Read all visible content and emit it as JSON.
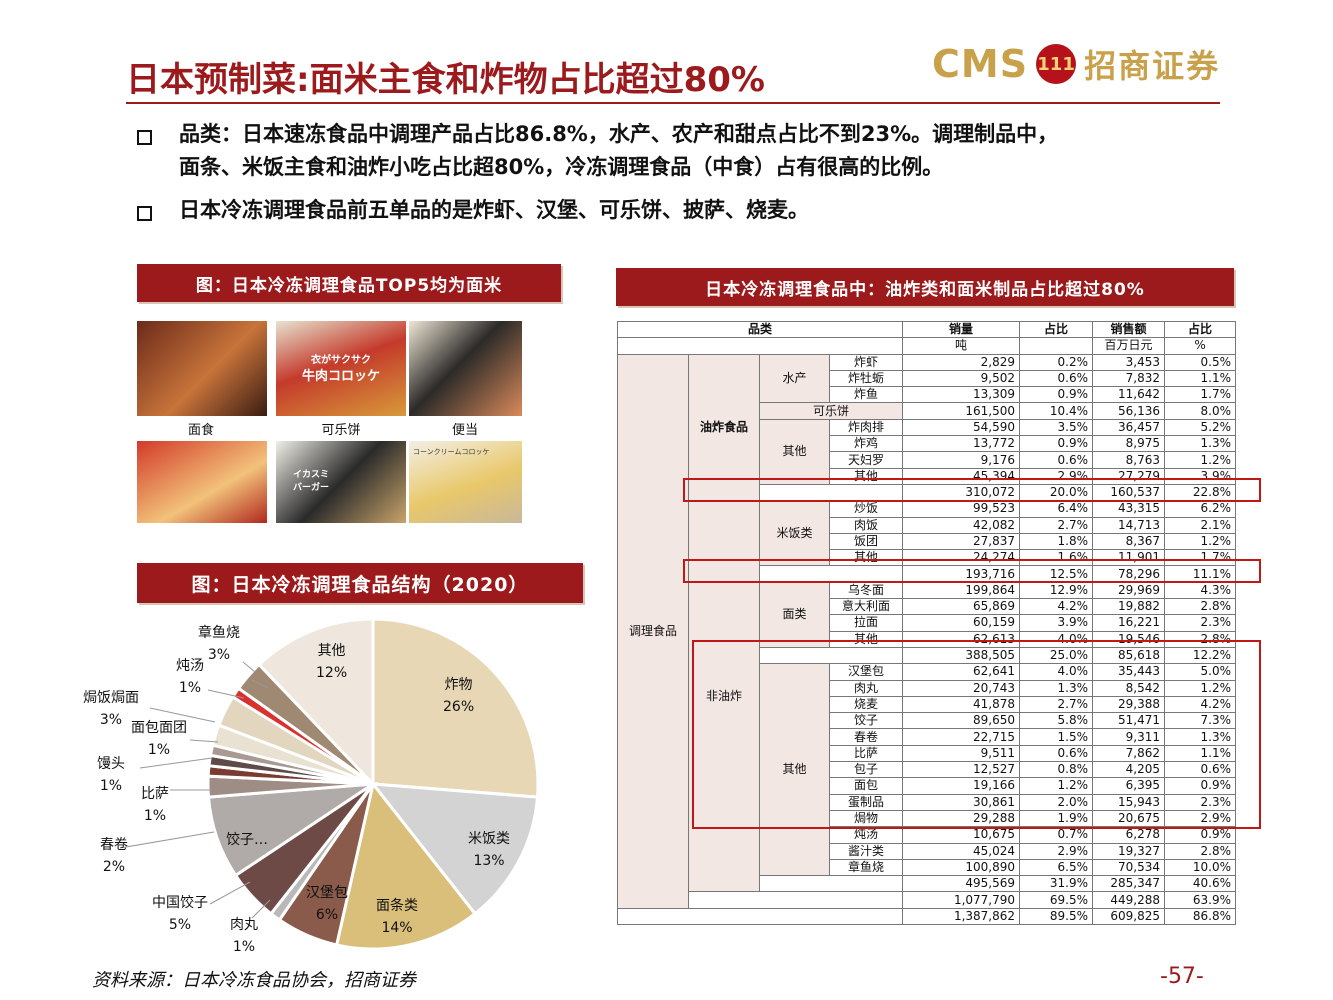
{
  "title": "日本预制菜:面米主食和炸物占比超过80%",
  "logo": {
    "en": "CMS",
    "mark": "111",
    "cn": "招商证券"
  },
  "bullets": [
    {
      "line1": "品类：日本速冻食品中调理产品占比86.8%，水产、农产和甜点占比不到23%。调理制品中，",
      "line2": "面条、米饭主食和油炸小吃占比超80%，冷冻调理食品（中食）占有很高的比例。"
    },
    {
      "line1": "日本冷冻调理食品前五单品的是炸虾、汉堡、可乐饼、披萨、烧麦。",
      "line2": ""
    }
  ],
  "banner_photos": "图：日本冷冻调理食品TOP5均为面米",
  "banner_pie": "图：日本冷冻调理食品结构（2020）",
  "banner_table": "日本冷冻调理食品中：油炸类和面米制品占比超过80%",
  "photo_captions": [
    "面食",
    "可乐饼",
    "便当"
  ],
  "photo_texts": [
    "衣がサクサク",
    "牛肉コロッケ",
    "イカスミ",
    "バーガー",
    "コーンクリームコロッケ"
  ],
  "chart_data": {
    "type": "pie",
    "title": "",
    "slices": [
      {
        "label": "炸物",
        "pct": "26%",
        "value": 26,
        "color": "#e8d7b5"
      },
      {
        "label": "米饭类",
        "pct": "13%",
        "value": 13,
        "color": "#d3d3d3"
      },
      {
        "label": "面条类",
        "pct": "14%",
        "value": 14,
        "color": "#d9bf7a"
      },
      {
        "label": "汉堡包",
        "pct": "6%",
        "value": 6,
        "color": "#8a5a4a"
      },
      {
        "label": "肉丸",
        "pct": "1%",
        "value": 1,
        "color": "#b9b9b9"
      },
      {
        "label": "中国饺子",
        "pct": "5%",
        "value": 5,
        "color": "#6d4a45"
      },
      {
        "label": "饺子…",
        "pct": "",
        "value": 8,
        "color": "#b0aaa8"
      },
      {
        "label": "春卷",
        "pct": "2%",
        "value": 2,
        "color": "#9e8d84"
      },
      {
        "label": "比萨",
        "pct": "1%",
        "value": 1,
        "color": "#7a3b33"
      },
      {
        "label": "馒头",
        "pct": "1%",
        "value": 1,
        "color": "#5e4a48"
      },
      {
        "label": "面包面团",
        "pct": "1%",
        "value": 1,
        "color": "#a89a92"
      },
      {
        "label": "",
        "pct": "",
        "value": 2,
        "color": "#e9e2d2"
      },
      {
        "label": "焗饭焗面",
        "pct": "3%",
        "value": 3,
        "color": "#e2d6bf"
      },
      {
        "label": "炖汤",
        "pct": "1%",
        "value": 1,
        "color": "#d9322e"
      },
      {
        "label": "章鱼烧",
        "pct": "3%",
        "value": 3,
        "color": "#a08972"
      },
      {
        "label": "其他",
        "pct": "12%",
        "value": 12,
        "color": "#efe7dd"
      }
    ]
  },
  "table": {
    "headers": [
      "品类",
      "销量",
      "占比",
      "销售额",
      "占比"
    ],
    "units": [
      "吨",
      "",
      "百万日元",
      "%"
    ],
    "groups": {
      "top": "调理食品",
      "fried": "油炸食品",
      "nonfried": "非油炸",
      "seafood": "水产",
      "cola": "可乐饼",
      "other": "其他",
      "rice": "米饭类",
      "noodle": "面类"
    },
    "rows": [
      [
        "炸虾",
        "2,829",
        "0.2%",
        "3,453",
        "0.5%"
      ],
      [
        "炸牡蛎",
        "9,502",
        "0.6%",
        "7,832",
        "1.1%"
      ],
      [
        "炸鱼",
        "13,309",
        "0.9%",
        "11,642",
        "1.7%"
      ],
      [
        "",
        "161,500",
        "10.4%",
        "56,136",
        "8.0%"
      ],
      [
        "炸肉排",
        "54,590",
        "3.5%",
        "36,457",
        "5.2%"
      ],
      [
        "炸鸡",
        "13,772",
        "0.9%",
        "8,975",
        "1.3%"
      ],
      [
        "天妇罗",
        "9,176",
        "0.6%",
        "8,763",
        "1.2%"
      ],
      [
        "其他",
        "45,394",
        "2.9%",
        "27,279",
        "3.9%"
      ],
      [
        "",
        "310,072",
        "20.0%",
        "160,537",
        "22.8%"
      ],
      [
        "炒饭",
        "99,523",
        "6.4%",
        "43,315",
        "6.2%"
      ],
      [
        "肉饭",
        "42,082",
        "2.7%",
        "14,713",
        "2.1%"
      ],
      [
        "饭团",
        "27,837",
        "1.8%",
        "8,367",
        "1.2%"
      ],
      [
        "其他",
        "24,274",
        "1.6%",
        "11,901",
        "1.7%"
      ],
      [
        "",
        "193,716",
        "12.5%",
        "78,296",
        "11.1%"
      ],
      [
        "乌冬面",
        "199,864",
        "12.9%",
        "29,969",
        "4.3%"
      ],
      [
        "意大利面",
        "65,869",
        "4.2%",
        "19,882",
        "2.8%"
      ],
      [
        "拉面",
        "60,159",
        "3.9%",
        "16,221",
        "2.3%"
      ],
      [
        "其他",
        "62,613",
        "4.0%",
        "19,546",
        "2.8%"
      ],
      [
        "",
        "388,505",
        "25.0%",
        "85,618",
        "12.2%"
      ],
      [
        "汉堡包",
        "62,641",
        "4.0%",
        "35,443",
        "5.0%"
      ],
      [
        "肉丸",
        "20,743",
        "1.3%",
        "8,542",
        "1.2%"
      ],
      [
        "烧麦",
        "41,878",
        "2.7%",
        "29,388",
        "4.2%"
      ],
      [
        "饺子",
        "89,650",
        "5.8%",
        "51,471",
        "7.3%"
      ],
      [
        "春卷",
        "22,715",
        "1.5%",
        "9,311",
        "1.3%"
      ],
      [
        "比萨",
        "9,511",
        "0.6%",
        "7,862",
        "1.1%"
      ],
      [
        "包子",
        "12,527",
        "0.8%",
        "4,205",
        "0.6%"
      ],
      [
        "面包",
        "19,166",
        "1.2%",
        "6,395",
        "0.9%"
      ],
      [
        "蛋制品",
        "30,861",
        "2.0%",
        "15,943",
        "2.3%"
      ],
      [
        "焗物",
        "29,288",
        "1.9%",
        "20,675",
        "2.9%"
      ],
      [
        "炖汤",
        "10,675",
        "0.7%",
        "6,278",
        "0.9%"
      ],
      [
        "酱汁类",
        "45,024",
        "2.9%",
        "19,327",
        "2.8%"
      ],
      [
        "章鱼烧",
        "100,890",
        "6.5%",
        "70,534",
        "10.0%"
      ],
      [
        "",
        "495,569",
        "31.9%",
        "285,347",
        "40.6%"
      ],
      [
        "",
        "1,077,790",
        "69.5%",
        "449,288",
        "63.9%"
      ],
      [
        "",
        "1,387,862",
        "89.5%",
        "609,825",
        "86.8%"
      ]
    ]
  },
  "source": "资料来源：日本冷冻食品协会，招商证券",
  "page_number": "-57-"
}
